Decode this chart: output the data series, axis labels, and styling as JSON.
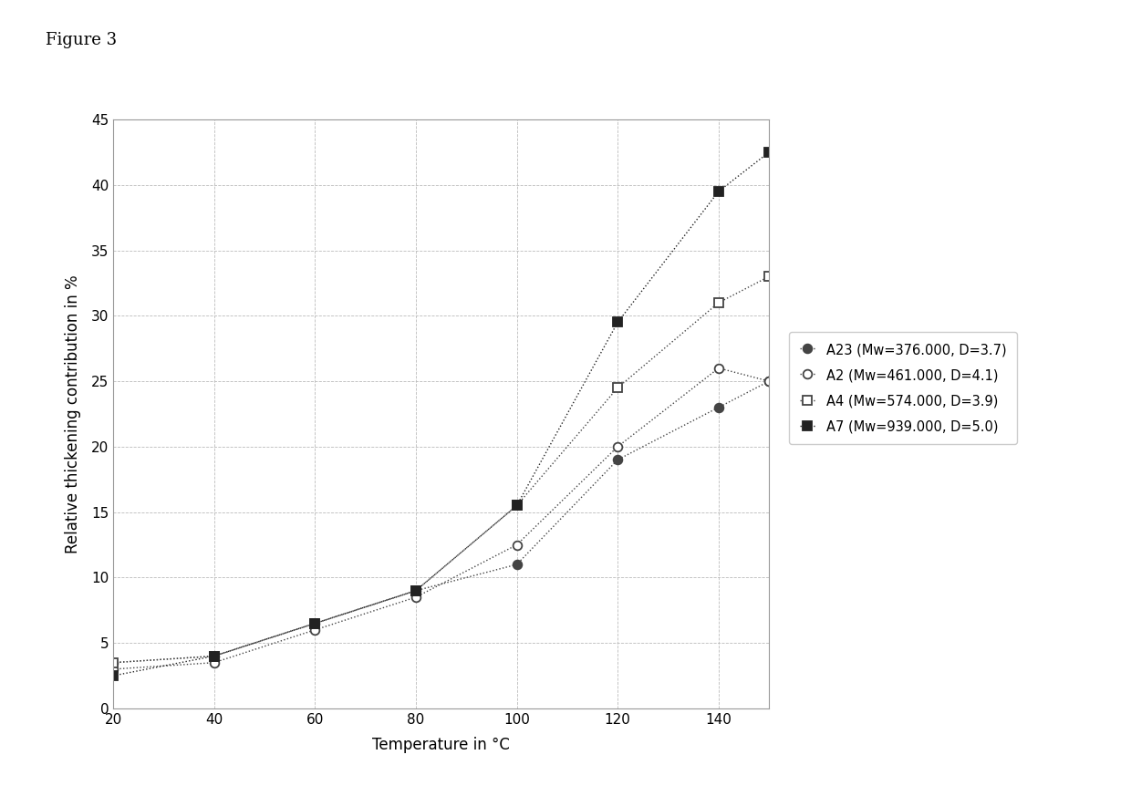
{
  "xlabel": "Temperature in °C",
  "ylabel": "Relative thickening contribution in %",
  "xlim": [
    20,
    150
  ],
  "ylim": [
    0,
    45
  ],
  "xticks": [
    20,
    40,
    60,
    80,
    100,
    120,
    140
  ],
  "yticks": [
    0,
    5,
    10,
    15,
    20,
    25,
    30,
    35,
    40,
    45
  ],
  "series": [
    {
      "label": "A23 (Mw=376.000, D=3.7)",
      "x": [
        20,
        40,
        60,
        80,
        100,
        120,
        140,
        150
      ],
      "y": [
        3.5,
        4.0,
        6.5,
        9.0,
        11.0,
        19.0,
        23.0,
        25.0
      ],
      "color": "#444444",
      "marker": "o",
      "marker_filled": true,
      "linestyle": ":"
    },
    {
      "label": "A2 (Mw=461.000, D=4.1)",
      "x": [
        20,
        40,
        60,
        80,
        100,
        120,
        140,
        150
      ],
      "y": [
        3.0,
        3.5,
        6.0,
        8.5,
        12.5,
        20.0,
        26.0,
        25.0
      ],
      "color": "#444444",
      "marker": "o",
      "marker_filled": false,
      "linestyle": ":"
    },
    {
      "label": "A4 (Mw=574.000, D=3.9)",
      "x": [
        20,
        40,
        60,
        80,
        100,
        120,
        140,
        150
      ],
      "y": [
        3.5,
        4.0,
        6.5,
        9.0,
        15.5,
        24.5,
        31.0,
        33.0
      ],
      "color": "#444444",
      "marker": "s",
      "marker_filled": false,
      "linestyle": ":"
    },
    {
      "label": "A7 (Mw=939.000, D=5.0)",
      "x": [
        20,
        40,
        60,
        80,
        100,
        120,
        140,
        150
      ],
      "y": [
        2.5,
        4.0,
        6.5,
        9.0,
        15.5,
        29.5,
        39.5,
        42.5
      ],
      "color": "#222222",
      "marker": "s",
      "marker_filled": true,
      "linestyle": ":"
    }
  ],
  "background_color": "#ffffff",
  "figure_label": "Figure 3"
}
